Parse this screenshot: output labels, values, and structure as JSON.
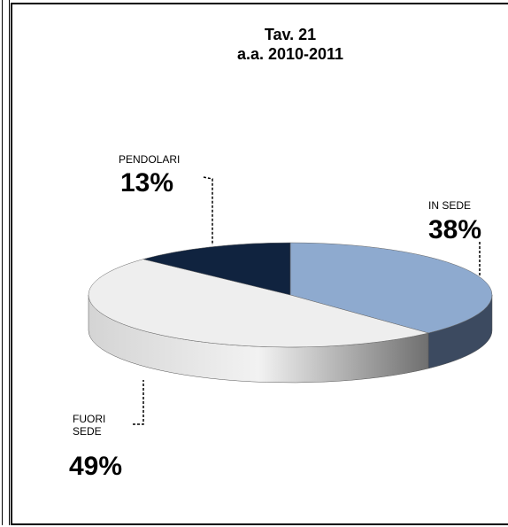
{
  "chart_data": {
    "type": "pie",
    "title": "Tav. 21",
    "subtitle": "a.a. 2010-2011",
    "categories": [
      "IN SEDE",
      "FUORI SEDE",
      "PENDOLARI"
    ],
    "values": [
      38,
      49,
      13
    ],
    "value_labels": [
      "38%",
      "49%",
      "13%"
    ],
    "colors": [
      "#8eaacf",
      "#eeeeee",
      "#10233f"
    ],
    "side_colors": [
      "#3c4a60",
      "#9a9a9a",
      "#0a1628"
    ]
  }
}
